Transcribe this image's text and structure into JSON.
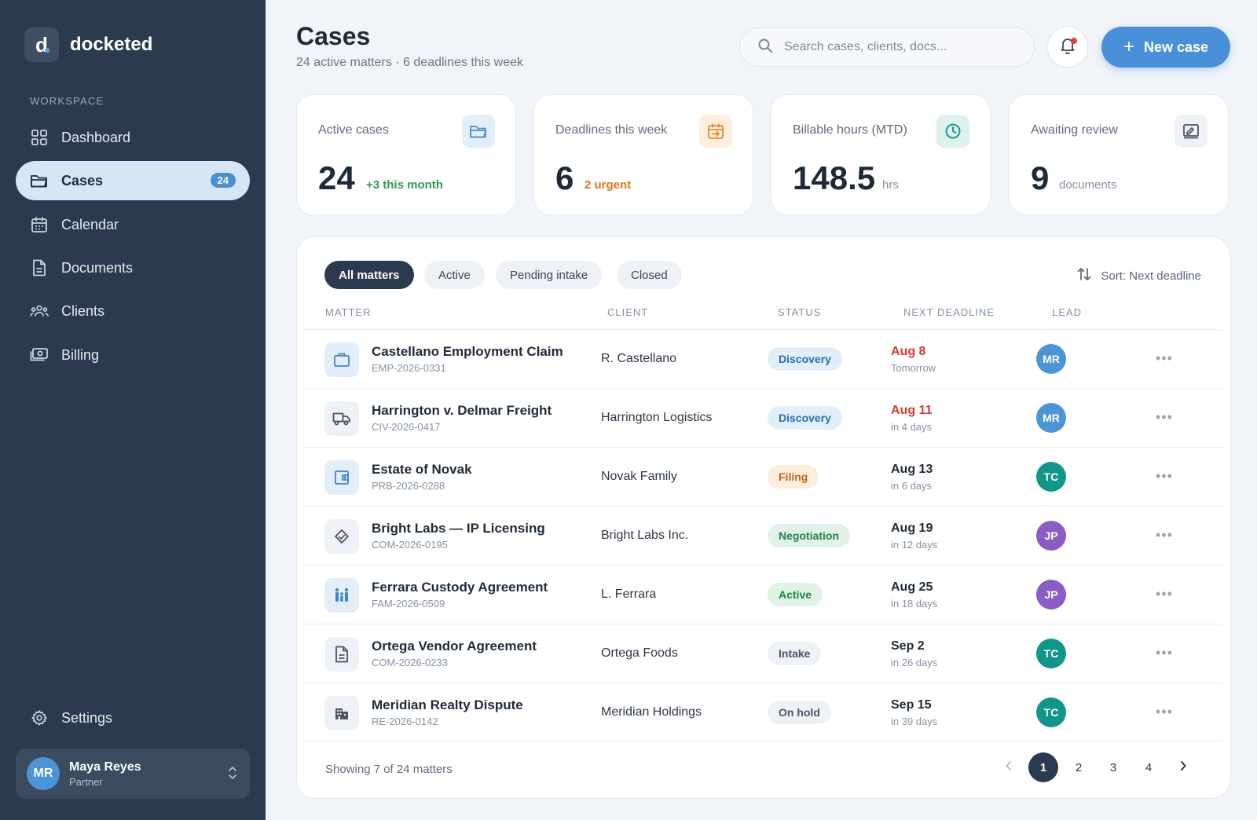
{
  "brand": {
    "letter": "d",
    "name": "docketed"
  },
  "sidebar": {
    "section_label": "WORKSPACE",
    "items": [
      {
        "label": "Dashboard",
        "icon": "grid-icon"
      },
      {
        "label": "Cases",
        "icon": "folder-icon",
        "badge": "24",
        "active": true
      },
      {
        "label": "Calendar",
        "icon": "calendar-icon"
      },
      {
        "label": "Documents",
        "icon": "document-icon"
      },
      {
        "label": "Clients",
        "icon": "users-icon"
      },
      {
        "label": "Billing",
        "icon": "money-icon"
      }
    ],
    "settings_label": "Settings",
    "user": {
      "initials": "MR",
      "name": "Maya Reyes",
      "role": "Partner"
    }
  },
  "header": {
    "title": "Cases",
    "subtitle": "24 active matters · 6 deadlines this week",
    "search_placeholder": "Search cases, clients, docs...",
    "new_button_label": "New case"
  },
  "stats": [
    {
      "label": "Active cases",
      "value": "24",
      "note": "+3 this month",
      "note_color": "#2e9a52",
      "icon": "folder-open-icon",
      "icon_bg": "#e3eef9",
      "icon_color": "#4a8fd0"
    },
    {
      "label": "Deadlines this week",
      "value": "6",
      "note": "2 urgent",
      "note_color": "#d9761c",
      "icon": "calendar-arrow-icon",
      "icon_bg": "#fdeedd",
      "icon_color": "#e08a2b"
    },
    {
      "label": "Billable hours (MTD)",
      "value": "148.5",
      "note": "hrs",
      "note_color": "#8592a3",
      "icon": "clock-icon",
      "icon_bg": "#ddf1ef",
      "icon_color": "#1a9a8e"
    },
    {
      "label": "Awaiting review",
      "value": "9",
      "note": "documents",
      "note_color": "#8592a3",
      "icon": "review-icon",
      "icon_bg": "#eef1f5",
      "icon_color": "#4b5565"
    }
  ],
  "filters": {
    "chips": [
      "All matters",
      "Active",
      "Pending intake",
      "Closed"
    ],
    "sort_label": "Sort: Next deadline"
  },
  "table": {
    "headers": [
      "MATTER",
      "CLIENT",
      "STATUS",
      "NEXT DEADLINE",
      "LEAD"
    ],
    "rows": [
      {
        "title": "Castellano Employment Claim",
        "code": "EMP-2026-0331",
        "client": "R. Castellano",
        "status": "Discovery",
        "status_bg": "#e2eef9",
        "status_color": "#2a6fae",
        "deadline": "Aug 8",
        "deadline_color": "#d23b32",
        "relative": "Tomorrow",
        "lead": "MR",
        "lead_color": "#4d94d6",
        "icon": "briefcase-icon",
        "icon_bg": "#e3eef9",
        "icon_color": "#3d85cf"
      },
      {
        "title": "Harrington v. Delmar Freight",
        "code": "CIV-2026-0417",
        "client": "Harrington Logistics",
        "status": "Discovery",
        "status_bg": "#e2eef9",
        "status_color": "#2a6fae",
        "deadline": "Aug 11",
        "deadline_color": "#d23b32",
        "relative": "in 4 days",
        "lead": "MR",
        "lead_color": "#4d94d6",
        "icon": "truck-icon",
        "icon_bg": "#eef1f5",
        "icon_color": "#4b5565"
      },
      {
        "title": "Estate of Novak",
        "code": "PRB-2026-0288",
        "client": "Novak Family",
        "status": "Filing",
        "status_bg": "#fdeede",
        "status_color": "#c0651a",
        "deadline": "Aug 13",
        "deadline_color": "#1f2a38",
        "relative": "in 6 days",
        "lead": "TC",
        "lead_color": "#13968a",
        "icon": "wallet-icon",
        "icon_bg": "#e3eef9",
        "icon_color": "#3d85cf"
      },
      {
        "title": "Bright Labs — IP Licensing",
        "code": "COM-2026-0195",
        "client": "Bright Labs Inc.",
        "status": "Negotiation",
        "status_bg": "#e1f3e7",
        "status_color": "#23804a",
        "deadline": "Aug 19",
        "deadline_color": "#1f2a38",
        "relative": "in 12 days",
        "lead": "JP",
        "lead_color": "#8a5cc4",
        "icon": "handshake-icon",
        "icon_bg": "#eef1f5",
        "icon_color": "#4b5565"
      },
      {
        "title": "Ferrara Custody Agreement",
        "code": "FAM-2026-0509",
        "client": "L. Ferrara",
        "status": "Active",
        "status_bg": "#e1f3e7",
        "status_color": "#23804a",
        "deadline": "Aug 25",
        "deadline_color": "#1f2a38",
        "relative": "in 18 days",
        "lead": "JP",
        "lead_color": "#8a5cc4",
        "icon": "family-icon",
        "icon_bg": "#e3eef9",
        "icon_color": "#3d85cf"
      },
      {
        "title": "Ortega Vendor Agreement",
        "code": "COM-2026-0233",
        "client": "Ortega Foods",
        "status": "Intake",
        "status_bg": "#eef1f5",
        "status_color": "#4b5565",
        "deadline": "Sep 2",
        "deadline_color": "#1f2a38",
        "relative": "in 26 days",
        "lead": "TC",
        "lead_color": "#13968a",
        "icon": "file-text-icon",
        "icon_bg": "#eef1f5",
        "icon_color": "#4b5565"
      },
      {
        "title": "Meridian Realty Dispute",
        "code": "RE-2026-0142",
        "client": "Meridian Holdings",
        "status": "On hold",
        "status_bg": "#eef1f5",
        "status_color": "#4b5565",
        "deadline": "Sep 15",
        "deadline_color": "#1f2a38",
        "relative": "in 39 days",
        "lead": "TC",
        "lead_color": "#13968a",
        "icon": "building-icon",
        "icon_bg": "#eef1f5",
        "icon_color": "#4b5565"
      }
    ]
  },
  "footer": {
    "showing_text": "Showing 7 of 24 matters",
    "pages": [
      "1",
      "2",
      "3",
      "4"
    ],
    "current_page": "1"
  }
}
